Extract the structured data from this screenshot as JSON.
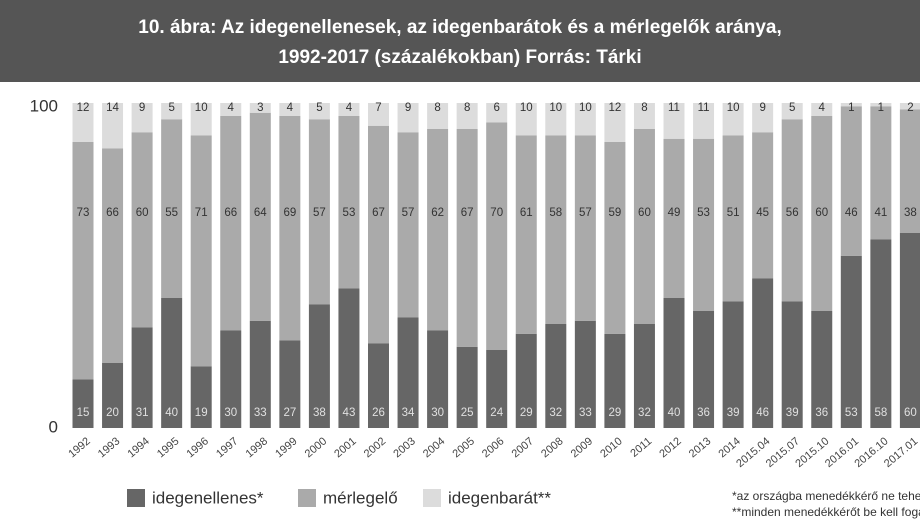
{
  "chart_data": {
    "type": "stacked_bar",
    "title": [
      "10. ábra: Az idegenellenesek, az idegenbarátok és a mérlegelők aránya,",
      "1992-2017 (százalékokban) Forrás: Tárki"
    ],
    "categories": [
      "1992",
      "1993",
      "1994",
      "1995",
      "1996",
      "1997",
      "1998",
      "1999",
      "2000",
      "2001",
      "2002",
      "2003",
      "2004",
      "2005",
      "2006",
      "2007",
      "2008",
      "2009",
      "2010",
      "2011",
      "2012",
      "2013",
      "2014",
      "2015.04",
      "2015.07",
      "2015.10",
      "2016.01",
      "2016.10",
      "2017.01"
    ],
    "series": [
      {
        "name": "idegenellenes*",
        "color": "#666666",
        "values": [
          15,
          20,
          31,
          40,
          19,
          30,
          33,
          27,
          38,
          43,
          26,
          34,
          30,
          25,
          24,
          29,
          32,
          33,
          29,
          32,
          40,
          36,
          39,
          46,
          39,
          36,
          53,
          58,
          60
        ]
      },
      {
        "name": "mérlegelő",
        "color": "#aaaaaa",
        "values": [
          73,
          66,
          60,
          55,
          71,
          66,
          64,
          69,
          57,
          53,
          67,
          57,
          62,
          67,
          70,
          61,
          58,
          57,
          59,
          60,
          49,
          53,
          51,
          45,
          56,
          60,
          46,
          41,
          38
        ]
      },
      {
        "name": "idegenbarát**",
        "color": "#dcdcdc",
        "values": [
          12,
          14,
          9,
          5,
          10,
          4,
          3,
          4,
          5,
          4,
          7,
          9,
          8,
          8,
          6,
          10,
          10,
          10,
          12,
          8,
          11,
          11,
          10,
          9,
          5,
          4,
          1,
          1,
          2
        ]
      }
    ],
    "ylim": [
      0,
      100
    ],
    "yticks": [
      0,
      100
    ],
    "grid": false,
    "notes": [
      "*az országba menedékkérő ne tehesse be a lábát",
      "**minden menedékkérőt be kell fogadni"
    ]
  }
}
